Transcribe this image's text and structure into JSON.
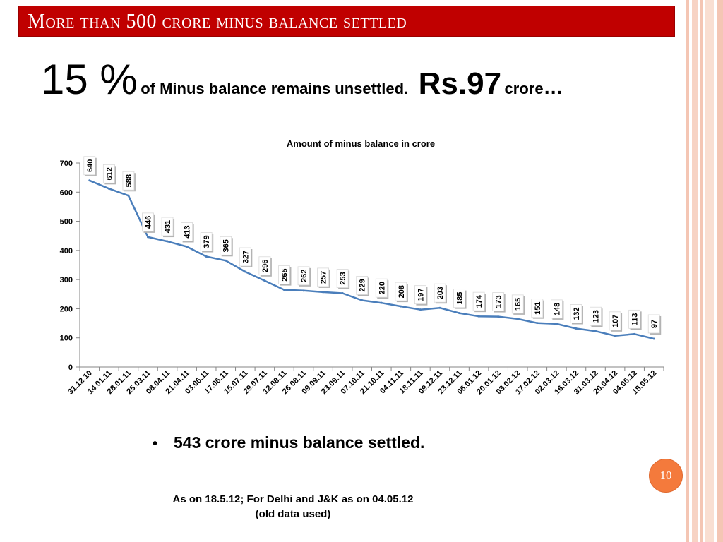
{
  "slide": {
    "title": "More than 500 crore minus balance settled",
    "headline": {
      "percent": "15 %",
      "text": "of Minus balance remains unsettled.",
      "amount": "Rs.97",
      "unit": "crore",
      "ellipsis": "…"
    },
    "bullet": "543 crore minus balance settled.",
    "footnote_line1": "As on 18.5.12; For Delhi  and J&K as on 04.05.12",
    "footnote_line2": "(old data used)",
    "page_number": "10",
    "colors": {
      "title_bar": "#c00000",
      "line": "#4a7ebb",
      "badge": "#f47a3c",
      "side_stripes": "#f4c6b4"
    }
  },
  "chart_data": {
    "type": "line",
    "title": "Amount of minus balance in crore",
    "xlabel": "",
    "ylabel": "",
    "ylim": [
      0,
      700
    ],
    "yticks": [
      0,
      100,
      200,
      300,
      400,
      500,
      600,
      700
    ],
    "grid": false,
    "legend": "none",
    "categories": [
      "31.12.10",
      "14.01.11",
      "28.01.11",
      "25.03.11",
      "08.04.11",
      "21.04.11",
      "03.06.11",
      "17.06.11",
      "15.07.11",
      "29.07.11",
      "12.08.11",
      "26.08.11",
      "09.09.11",
      "23.09.11",
      "07.10.11",
      "21.10.11",
      "04.11.11",
      "18.11.11",
      "09.12.11",
      "23.12.11",
      "06.01.12",
      "20.01.12",
      "03.02.12",
      "17.02.12",
      "02.03.12",
      "16.03.12",
      "31.03.12",
      "20.04.12",
      "04.05.12",
      "18.05.12"
    ],
    "values": [
      640,
      612,
      588,
      446,
      431,
      413,
      379,
      365,
      327,
      296,
      265,
      262,
      257,
      253,
      229,
      220,
      208,
      197,
      203,
      185,
      174,
      173,
      165,
      151,
      148,
      132,
      123,
      107,
      113,
      97
    ]
  }
}
